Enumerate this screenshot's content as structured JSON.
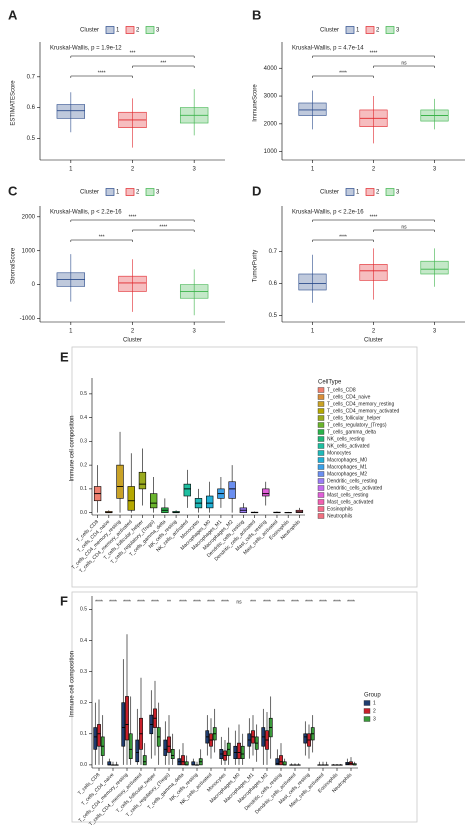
{
  "chart_data": [
    {
      "type": "box",
      "panel": "A",
      "annotation": "Kruskal-Wallis, p = 1.9e-12",
      "y_label": "ESTIMATEScore",
      "legend_title": "Cluster",
      "categories": [
        "1",
        "2",
        "3"
      ],
      "colors": [
        "#2b4c8c",
        "#e0262b",
        "#3bb34a"
      ],
      "boxes": [
        [
          0.52,
          0.565,
          0.59,
          0.61,
          0.65
        ],
        [
          0.47,
          0.535,
          0.56,
          0.585,
          0.63
        ],
        [
          0.51,
          0.55,
          0.575,
          0.6,
          0.66
        ]
      ],
      "comparisons": [
        "****",
        "***",
        "***"
      ],
      "ylim": [
        0.43,
        0.8
      ],
      "yticks": [
        0.5,
        0.6,
        0.7
      ]
    },
    {
      "type": "box",
      "panel": "B",
      "annotation": "Kruskal-Wallis, p = 4.7e-14",
      "y_label": "ImmuneScore",
      "legend_title": "Cluster",
      "categories": [
        "1",
        "2",
        "3"
      ],
      "colors": [
        "#2b4c8c",
        "#e0262b",
        "#3bb34a"
      ],
      "boxes": [
        [
          1800,
          2300,
          2500,
          2750,
          3200
        ],
        [
          1300,
          1900,
          2200,
          2500,
          3000
        ],
        [
          1800,
          2100,
          2300,
          2500,
          2900
        ]
      ],
      "comparisons": [
        "****",
        "ns",
        "****"
      ],
      "ylim": [
        700,
        4800
      ],
      "yticks": [
        1000,
        2000,
        3000,
        4000
      ]
    },
    {
      "type": "box",
      "panel": "C",
      "annotation": "Kruskal-Wallis, p < 2.2e-16",
      "y_label": "StromalScore",
      "x_label": "Cluster",
      "legend_title": "Cluster",
      "categories": [
        "1",
        "2",
        "3"
      ],
      "colors": [
        "#2b4c8c",
        "#e0262b",
        "#3bb34a"
      ],
      "boxes": [
        [
          -500,
          -50,
          150,
          350,
          900
        ],
        [
          -800,
          -200,
          50,
          250,
          750
        ],
        [
          -900,
          -400,
          -200,
          0,
          450
        ]
      ],
      "comparisons": [
        "***",
        "****",
        "****"
      ],
      "ylim": [
        -1100,
        2200
      ],
      "yticks": [
        -1000,
        0,
        1000,
        2000
      ]
    },
    {
      "type": "box",
      "panel": "D",
      "annotation": "Kruskal-Wallis, p < 2.2e-16",
      "y_label": "TumorPurity",
      "x_label": "Cluster",
      "legend_title": "Cluster",
      "categories": [
        "1",
        "2",
        "3"
      ],
      "colors": [
        "#2b4c8c",
        "#e0262b",
        "#3bb34a"
      ],
      "boxes": [
        [
          0.54,
          0.58,
          0.6,
          0.63,
          0.69
        ],
        [
          0.55,
          0.61,
          0.64,
          0.66,
          0.71
        ],
        [
          0.59,
          0.63,
          0.645,
          0.67,
          0.71
        ]
      ],
      "comparisons": [
        "****",
        "ns",
        "****"
      ],
      "ylim": [
        0.48,
        0.83
      ],
      "yticks": [
        0.5,
        0.6,
        0.7
      ]
    },
    {
      "type": "box",
      "panel": "E",
      "y_label": "Immune cell composition",
      "legend_title": "CellType",
      "box_outline": "#000000",
      "categories": [
        "T_cells_CD8",
        "T_cells_CD4_naive",
        "T_cells_CD4_memory_resting",
        "T_cells_CD4_memory_activated",
        "T_cells_follicular_helper",
        "T_cells_regulatory_(Tregs)",
        "T_cells_gamma_delta",
        "NK_cells_resting",
        "NK_cells_activated",
        "Monocytes",
        "Macrophages_M0",
        "Macrophages_M1",
        "Macrophages_M2",
        "Dendritic_cells_resting",
        "Dendritic_cells_activated",
        "Mast_cells_resting",
        "Mast_cells_activated",
        "Eosinophils",
        "Neutrophils"
      ],
      "colors": [
        "#f08070",
        "#d98e3a",
        "#c9a227",
        "#b5a800",
        "#9aaa1e",
        "#6ab42d",
        "#2ab34a",
        "#1fb87a",
        "#1fbfa0",
        "#1fb9b9",
        "#20b0d6",
        "#3aa0e8",
        "#6b8ff0",
        "#9a7cf5",
        "#c36bf0",
        "#e060d8",
        "#f060b0",
        "#f56c8c",
        "#f07080"
      ],
      "boxes": [
        [
          0,
          0.05,
          0.08,
          0.11,
          0.2
        ],
        [
          0,
          0,
          0,
          0.005,
          0.01
        ],
        [
          0,
          0.06,
          0.11,
          0.2,
          0.34
        ],
        [
          0,
          0.01,
          0.05,
          0.11,
          0.25
        ],
        [
          0.03,
          0.1,
          0.12,
          0.17,
          0.27
        ],
        [
          0,
          0.02,
          0.04,
          0.08,
          0.15
        ],
        [
          0,
          0,
          0.01,
          0.02,
          0.06
        ],
        [
          0,
          0,
          0,
          0.005,
          0.01
        ],
        [
          0.02,
          0.07,
          0.1,
          0.12,
          0.18
        ],
        [
          0,
          0.02,
          0.04,
          0.06,
          0.1
        ],
        [
          0,
          0.02,
          0.04,
          0.07,
          0.13
        ],
        [
          0.02,
          0.06,
          0.08,
          0.1,
          0.15
        ],
        [
          0,
          0.06,
          0.1,
          0.13,
          0.2
        ],
        [
          0,
          0,
          0.01,
          0.02,
          0.04
        ],
        [
          0,
          0,
          0,
          0.002,
          0.005
        ],
        [
          0.03,
          0.07,
          0.08,
          0.1,
          0.13
        ],
        [
          0,
          0,
          0,
          0.002,
          0.005
        ],
        [
          0,
          0,
          0,
          0.001,
          0.003
        ],
        [
          0,
          0,
          0.003,
          0.01,
          0.02
        ]
      ],
      "ylim": [
        -0.01,
        0.55
      ],
      "yticks": [
        {
          "value": 0,
          "label": "0.0"
        },
        0.1,
        0.2,
        0.3,
        0.4,
        0.5
      ]
    },
    {
      "type": "grouped_box",
      "panel": "F",
      "y_label": "Immune cell composition",
      "legend_title": "Group",
      "box_outline": "#000000",
      "categories": [
        "T_cells_CD8",
        "T_cells_CD4_naive",
        "T_cells_CD4_memory_resting",
        "T_cells_CD4_memory_activated",
        "T_cells_follicular_helper",
        "T_cells_regulatory_(Tregs)",
        "T_cells_gamma_delta",
        "NK_cells_resting",
        "NK_cells_activated",
        "Monocytes",
        "Macrophages_M0",
        "Macrophages_M1",
        "Macrophages_M2",
        "Dendritic_cells_resting",
        "Dendritic_cells_activated",
        "Mast_cells_resting",
        "Mast_cells_activated",
        "Eosinophils",
        "Neutrophils"
      ],
      "significance": [
        "****",
        "****",
        "****",
        "****",
        "****",
        "**",
        "****",
        "****",
        "****",
        "****",
        "ns",
        "***",
        "****",
        "****",
        "****",
        "****",
        "****",
        "****",
        "****"
      ],
      "series": [
        {
          "name": "1",
          "color": "#1f3c6e",
          "boxes": [
            [
              0,
              0.05,
              0.09,
              0.12,
              0.2
            ],
            [
              0,
              0,
              0,
              0.01,
              0.02
            ],
            [
              0,
              0.06,
              0.12,
              0.2,
              0.34
            ],
            [
              0,
              0.01,
              0.04,
              0.08,
              0.18
            ],
            [
              0.02,
              0.1,
              0.13,
              0.16,
              0.24
            ],
            [
              0,
              0.03,
              0.05,
              0.08,
              0.14
            ],
            [
              0,
              0,
              0.01,
              0.02,
              0.05
            ],
            [
              0,
              0,
              0,
              0.01,
              0.02
            ],
            [
              0.03,
              0.07,
              0.09,
              0.11,
              0.16
            ],
            [
              0,
              0.02,
              0.035,
              0.05,
              0.09
            ],
            [
              0,
              0.02,
              0.04,
              0.06,
              0.11
            ],
            [
              0.02,
              0.06,
              0.08,
              0.1,
              0.15
            ],
            [
              0,
              0.06,
              0.09,
              0.12,
              0.18
            ],
            [
              0,
              0,
              0.005,
              0.02,
              0.05
            ],
            [
              0,
              0,
              0,
              0,
              0.005
            ],
            [
              0.03,
              0.07,
              0.09,
              0.1,
              0.14
            ],
            [
              0,
              0,
              0,
              0,
              0.01
            ],
            [
              0,
              0,
              0,
              0,
              0.003
            ],
            [
              0,
              0,
              0.003,
              0.008,
              0.02
            ]
          ]
        },
        {
          "name": "2",
          "color": "#c8202a",
          "boxes": [
            [
              0,
              0.06,
              0.1,
              0.13,
              0.21
            ],
            [
              0,
              0,
              0,
              0,
              0.01
            ],
            [
              0,
              0.08,
              0.13,
              0.22,
              0.42
            ],
            [
              0,
              0.05,
              0.1,
              0.15,
              0.28
            ],
            [
              0.03,
              0.12,
              0.15,
              0.18,
              0.27
            ],
            [
              0,
              0.04,
              0.06,
              0.09,
              0.16
            ],
            [
              0,
              0,
              0.01,
              0.03,
              0.07
            ],
            [
              0,
              0,
              0,
              0,
              0.01
            ],
            [
              0.02,
              0.06,
              0.08,
              0.1,
              0.15
            ],
            [
              0,
              0.015,
              0.03,
              0.045,
              0.08
            ],
            [
              0,
              0.02,
              0.04,
              0.07,
              0.13
            ],
            [
              0.03,
              0.07,
              0.09,
              0.11,
              0.16
            ],
            [
              0,
              0.05,
              0.08,
              0.11,
              0.17
            ],
            [
              0,
              0,
              0.01,
              0.03,
              0.07
            ],
            [
              0,
              0,
              0,
              0,
              0.005
            ],
            [
              0.02,
              0.06,
              0.08,
              0.1,
              0.13
            ],
            [
              0,
              0,
              0,
              0,
              0.01
            ],
            [
              0,
              0,
              0,
              0,
              0.003
            ],
            [
              0,
              0,
              0.005,
              0.01,
              0.025
            ]
          ]
        },
        {
          "name": "3",
          "color": "#3a9a3a",
          "boxes": [
            [
              0,
              0.03,
              0.06,
              0.09,
              0.16
            ],
            [
              0,
              0,
              0,
              0,
              0.01
            ],
            [
              0,
              0.02,
              0.05,
              0.1,
              0.22
            ],
            [
              0,
              0,
              0.01,
              0.03,
              0.07
            ],
            [
              0,
              0.06,
              0.09,
              0.12,
              0.2
            ],
            [
              0,
              0.02,
              0.03,
              0.05,
              0.1
            ],
            [
              0,
              0,
              0,
              0.01,
              0.03
            ],
            [
              0,
              0,
              0.01,
              0.02,
              0.05
            ],
            [
              0.04,
              0.08,
              0.1,
              0.12,
              0.18
            ],
            [
              0,
              0.03,
              0.05,
              0.07,
              0.12
            ],
            [
              0,
              0.02,
              0.035,
              0.06,
              0.1
            ],
            [
              0.01,
              0.05,
              0.07,
              0.09,
              0.13
            ],
            [
              0.02,
              0.09,
              0.12,
              0.15,
              0.22
            ],
            [
              0,
              0,
              0,
              0.01,
              0.02
            ],
            [
              0,
              0,
              0,
              0,
              0.005
            ],
            [
              0.04,
              0.08,
              0.1,
              0.12,
              0.16
            ],
            [
              0,
              0,
              0,
              0,
              0.01
            ],
            [
              0,
              0,
              0,
              0,
              0.003
            ],
            [
              0,
              0,
              0,
              0.004,
              0.01
            ]
          ]
        }
      ],
      "ylim": [
        -0.01,
        0.53
      ],
      "yticks": [
        {
          "value": 0,
          "label": "0.0"
        },
        0.1,
        0.2,
        0.3,
        0.4,
        0.5
      ]
    }
  ]
}
